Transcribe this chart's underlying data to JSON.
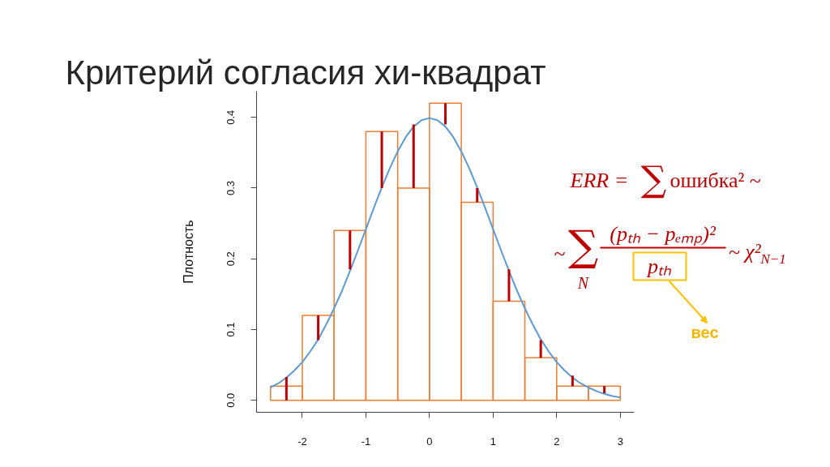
{
  "chart_data": {
    "type": "histogram",
    "title": "Критерий согласия хи-квадрат",
    "ylabel": "Плотность",
    "series": [
      {
        "color": "#ed7d31",
        "bins": [
          -2.5,
          -2.0,
          -1.5,
          -1.0,
          -0.5,
          0.0,
          0.5,
          1.0,
          1.5,
          2.0,
          2.5,
          3.0
        ],
        "values": [
          0.02,
          0.12,
          0.24,
          0.38,
          0.3,
          0.42,
          0.28,
          0.14,
          0.06,
          0.02,
          0.02
        ],
        "errors": [
          [
            0,
            0.033
          ],
          [
            0.085,
            0.12
          ],
          [
            0.185,
            0.24
          ],
          [
            0.3,
            0.38
          ],
          [
            0.3,
            0.39
          ],
          [
            0.39,
            0.42
          ],
          [
            0.28,
            0.3
          ],
          [
            0.14,
            0.185
          ],
          [
            0.06,
            0.085
          ],
          [
            0.02,
            0.035
          ],
          [
            0.01,
            0.02
          ]
        ]
      },
      {
        "type": "line",
        "color": "#5b9bd5",
        "x": [
          -2.5,
          -2.375,
          -2.25,
          -2.125,
          -2.0,
          -1.875,
          -1.75,
          -1.625,
          -1.5,
          -1.375,
          -1.25,
          -1.125,
          -1.0,
          -0.875,
          -0.75,
          -0.625,
          -0.5,
          -0.375,
          -0.25,
          -0.125,
          0.0,
          0.125,
          0.25,
          0.375,
          0.5,
          0.625,
          0.75,
          0.875,
          1.0,
          1.125,
          1.25,
          1.375,
          1.5,
          1.625,
          1.75,
          1.875,
          2.0,
          2.125,
          2.25,
          2.375,
          2.5,
          2.625,
          2.75,
          2.875,
          3.0
        ],
        "values": [
          0.018,
          0.024,
          0.032,
          0.042,
          0.054,
          0.069,
          0.086,
          0.107,
          0.13,
          0.155,
          0.183,
          0.212,
          0.242,
          0.272,
          0.301,
          0.328,
          0.352,
          0.372,
          0.387,
          0.396,
          0.399,
          0.396,
          0.387,
          0.372,
          0.352,
          0.328,
          0.301,
          0.272,
          0.242,
          0.212,
          0.183,
          0.155,
          0.13,
          0.107,
          0.086,
          0.069,
          0.054,
          0.042,
          0.032,
          0.024,
          0.018,
          0.013,
          0.009,
          0.006,
          0.004
        ]
      }
    ],
    "xlim": [
      -2.72,
      3.22
    ],
    "ylim": [
      -0.017,
      0.437
    ],
    "xticks": [
      -2,
      -1,
      0,
      1,
      2,
      3
    ],
    "yticks": [
      {
        "value": 0,
        "label": "0.0"
      },
      0.1,
      0.2,
      0.3,
      0.4
    ],
    "annotations": [
      "ERR =",
      "∑",
      "ошибка² ~",
      "~",
      "∑",
      "N",
      "(pₜₕ − pₑₘₚ)²",
      "pₜₕ",
      "~ χ²$_{N−1}$",
      "вес"
    ]
  }
}
